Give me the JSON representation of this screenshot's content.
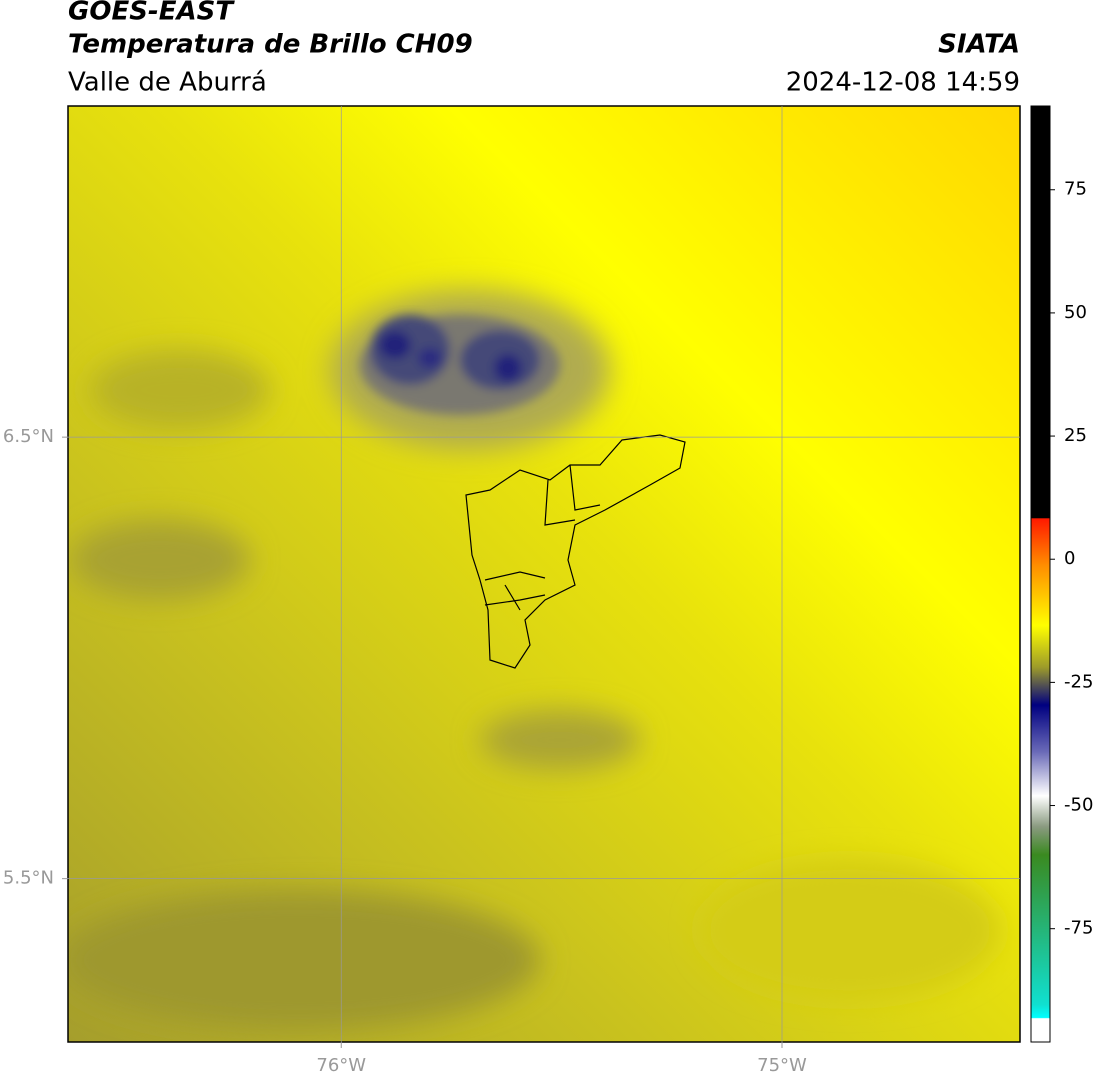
{
  "header": {
    "title": "GOES-EAST",
    "subtitle": "Temperatura de Brillo CH09",
    "region": "Valle de Aburrá",
    "source": "SIATA",
    "datetime": "2024-12-08 14:59"
  },
  "map": {
    "xlim": [
      -76.62,
      -74.46
    ],
    "ylim": [
      5.13,
      7.25
    ],
    "xticks": [
      {
        "value": -76,
        "label": "76°W"
      },
      {
        "value": -75,
        "label": "75°W"
      }
    ],
    "yticks": [
      {
        "value": 6.5,
        "label": "6.5°N"
      },
      {
        "value": 5.5,
        "label": "5.5°N"
      }
    ],
    "grid": true
  },
  "colorbar": {
    "lim": [
      -98,
      92
    ],
    "ticks": [
      75,
      50,
      25,
      0,
      -25,
      -50,
      -75
    ]
  }
}
